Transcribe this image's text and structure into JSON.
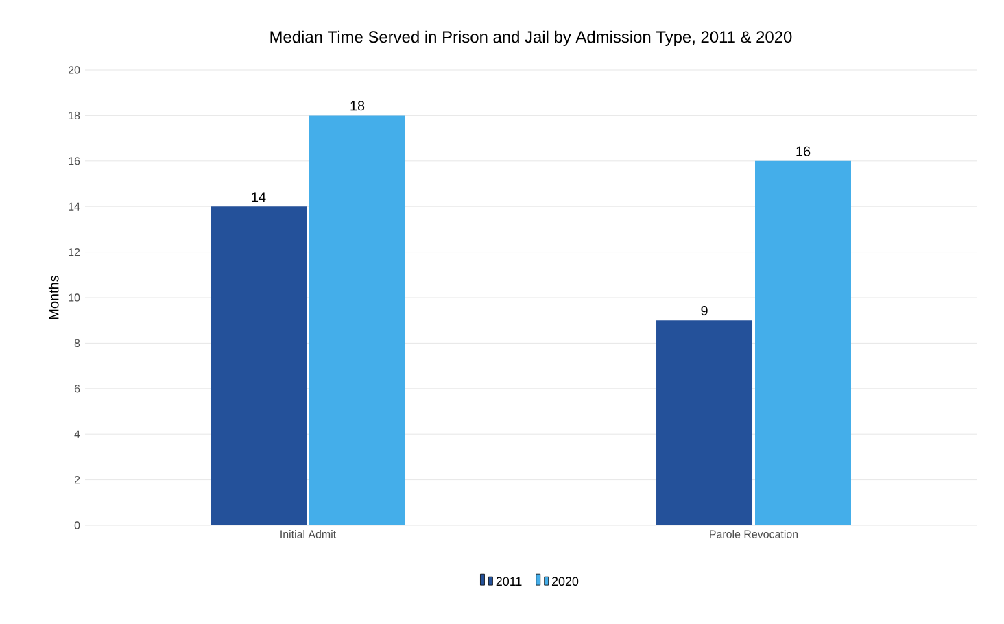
{
  "chart_data": {
    "type": "bar",
    "title": "Median Time Served in Prison and Jail by Admission Type, 2011 & 2020",
    "ylabel": "Months",
    "categories": [
      "Initial Admit",
      "Parole Revocation"
    ],
    "series": [
      {
        "name": "2011",
        "color": "#24519a",
        "values": [
          14,
          9
        ]
      },
      {
        "name": "2020",
        "color": "#44aeea",
        "values": [
          18,
          16
        ]
      }
    ],
    "ylim": [
      0,
      20
    ],
    "yticks": [
      0,
      2,
      4,
      6,
      8,
      10,
      12,
      14,
      16,
      18,
      20
    ],
    "grid": "y",
    "legend": "bottom",
    "data_labels": true
  }
}
